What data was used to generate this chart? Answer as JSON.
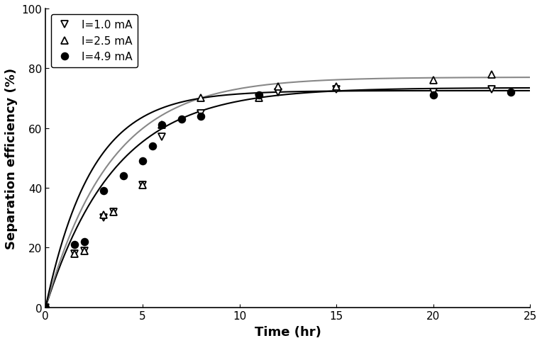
{
  "series": [
    {
      "label": "I=1.0 mA",
      "marker": "v",
      "marker_face": "white",
      "marker_edge": "black",
      "line_color": "black",
      "curve_A": 73.5,
      "curve_b": 0.28,
      "x": [
        0,
        1.5,
        2,
        3,
        3.5,
        5,
        6,
        8,
        11,
        12,
        15,
        20,
        23
      ],
      "y": [
        0,
        18,
        19,
        30,
        32,
        41,
        57,
        65,
        70,
        72,
        73,
        72,
        73
      ]
    },
    {
      "label": "I=2.5 mA",
      "marker": "^",
      "marker_face": "white",
      "marker_edge": "black",
      "line_color": "#888888",
      "curve_A": 77.0,
      "curve_b": 0.3,
      "x": [
        0,
        1.5,
        2,
        3,
        3.5,
        5,
        6,
        8,
        11,
        12,
        15,
        20,
        23
      ],
      "y": [
        0,
        18,
        19,
        31,
        32,
        41,
        61,
        70,
        70,
        74,
        74,
        76,
        78
      ]
    },
    {
      "label": "I=4.9 mA",
      "marker": "o",
      "marker_face": "black",
      "marker_edge": "black",
      "line_color": "black",
      "curve_A": 72.5,
      "curve_b": 0.42,
      "x": [
        0,
        1.5,
        2,
        3,
        4,
        5,
        5.5,
        6,
        7,
        8,
        11,
        20,
        24
      ],
      "y": [
        0,
        21,
        22,
        39,
        44,
        49,
        54,
        61,
        63,
        64,
        71,
        71,
        72
      ]
    }
  ],
  "xlabel": "Time (hr)",
  "ylabel": "Separation efficiency (%)",
  "xlim": [
    0,
    25
  ],
  "ylim": [
    0,
    100
  ],
  "xticks": [
    0,
    5,
    10,
    15,
    20,
    25
  ],
  "yticks": [
    0,
    20,
    40,
    60,
    80,
    100
  ],
  "legend_loc": "upper left",
  "background_color": "#ffffff",
  "axis_fontsize": 13,
  "tick_fontsize": 11,
  "legend_fontsize": 11
}
